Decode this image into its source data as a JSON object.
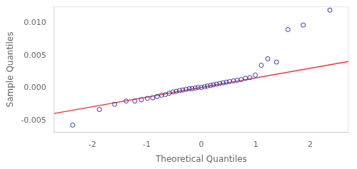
{
  "chart_data": {
    "type": "scatter",
    "xlabel": "Theoretical Quantiles",
    "ylabel": "Sample Quantiles",
    "xlim": [
      -2.7,
      2.7
    ],
    "ylim": [
      -0.0068,
      0.0125
    ],
    "xticks": [
      -2,
      -1,
      0,
      1,
      2
    ],
    "yticks": [
      -0.005,
      {
        "value": 0,
        "label": "0.000"
      },
      0.005,
      {
        "value": 0.01,
        "label": "0.010"
      }
    ],
    "grid": false,
    "series": [
      {
        "type": "scatter",
        "color": "#3333AA",
        "marker": "circle",
        "x": [
          -2.36,
          -1.87,
          -1.59,
          -1.38,
          -1.22,
          -1.1,
          -0.99,
          -0.89,
          -0.81,
          -0.73,
          -0.66,
          -0.59,
          -0.52,
          -0.46,
          -0.4,
          -0.34,
          -0.28,
          -0.22,
          -0.17,
          -0.11,
          -0.06,
          0.0,
          0.06,
          0.11,
          0.17,
          0.22,
          0.28,
          0.34,
          0.4,
          0.46,
          0.52,
          0.59,
          0.66,
          0.73,
          0.81,
          0.89,
          0.99,
          1.1,
          1.22,
          1.38,
          1.59,
          1.87,
          2.36
        ],
        "values": [
          -0.0057,
          -0.0033,
          -0.0025,
          -0.002,
          -0.002,
          -0.0018,
          -0.0016,
          -0.0015,
          -0.0013,
          -0.0011,
          -0.001,
          -0.0008,
          -0.0006,
          -0.0005,
          -0.0004,
          -0.0003,
          -0.0002,
          -0.0001,
          -0.0001,
          0.0,
          0.0001,
          0.0001,
          0.0002,
          0.0003,
          0.0004,
          0.0005,
          0.0006,
          0.0007,
          0.0008,
          0.0009,
          0.001,
          0.0011,
          0.0012,
          0.0013,
          0.0015,
          0.0016,
          0.002,
          0.0035,
          0.0045,
          0.004,
          0.009,
          0.0097,
          0.012
        ]
      },
      {
        "type": "line",
        "color": "#EE3333",
        "x": [
          -2.7,
          2.7
        ],
        "values": [
          -0.003916,
          0.004076
        ]
      }
    ]
  }
}
